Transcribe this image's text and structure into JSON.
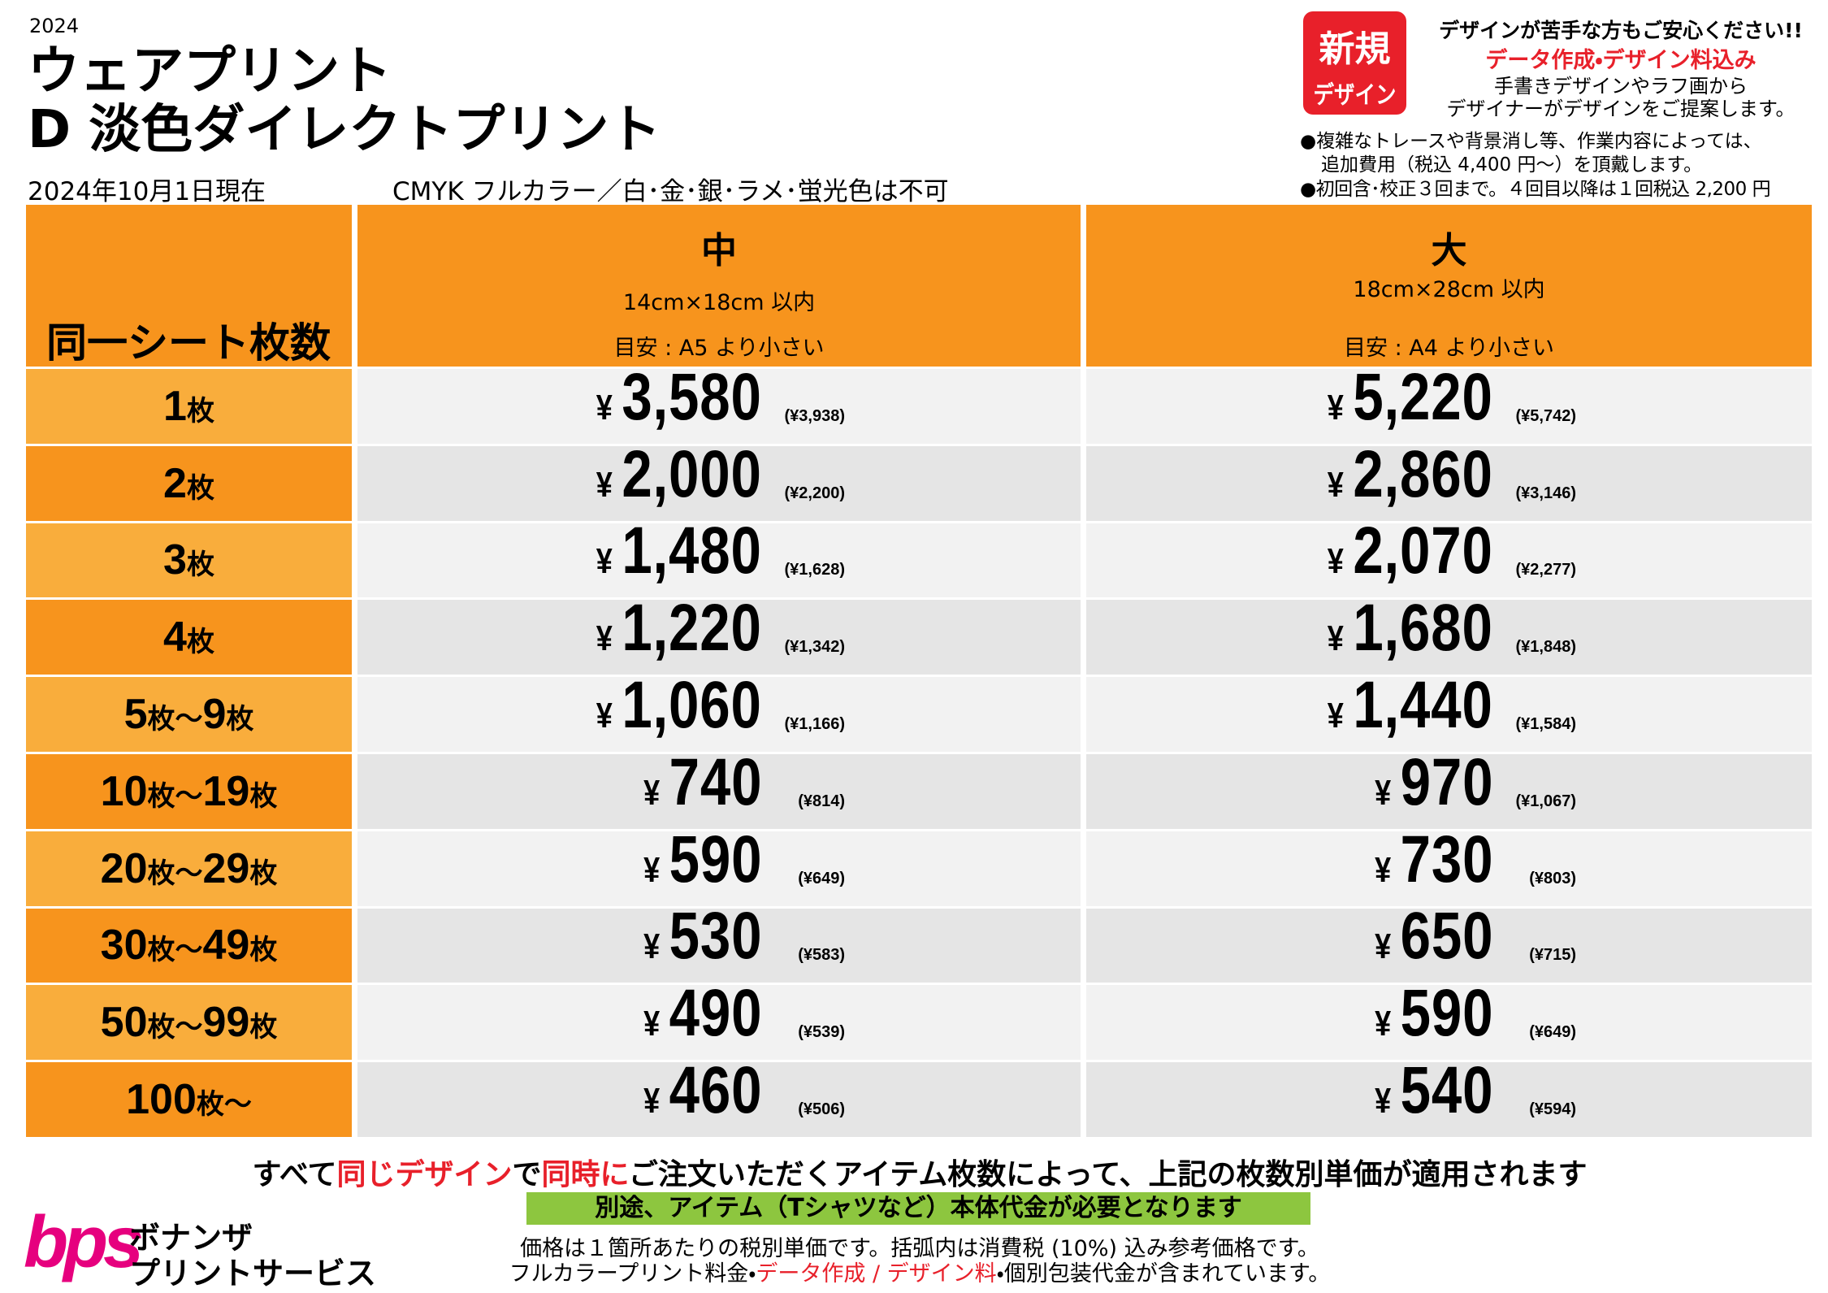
{
  "header": {
    "year": "2024",
    "title_line1": "ウェアプリント",
    "title_line2": "D 淡色ダイレクトプリント",
    "date": "2024年10月1日現在",
    "note": "CMYK フルカラー／白･金･銀･ラメ･蛍光色は不可"
  },
  "design_info": {
    "badge_line1": "新規",
    "badge_line2": "デザイン",
    "line1": "デザインが苦手な方もご安心ください!!",
    "line2": "データ作成・デザイン料込み",
    "line3": "手書きデザインやラフ画から",
    "line4": "デザイナーがデザインをご提案します。",
    "note1": "●複雑なトレースや背景消し等、作業内容によっては、",
    "note1_cont": "追加費用（税込 4,400 円～）を頂戴します。",
    "note2": "●初回含･校正３回まで。４回目以降は１回税込 2,200 円"
  },
  "table": {
    "label_header": "同一シート枚数",
    "currency": "¥",
    "columns": [
      {
        "name": "中",
        "size": "14cm×18cm 以内",
        "guide": "目安 : A5 より小さい"
      },
      {
        "name": "大",
        "size": "18cm×28cm 以内",
        "guide": "目安 : A4 より小さい"
      }
    ],
    "rows": [
      {
        "label": "1枚",
        "prices": [
          "3,580",
          "5,220"
        ],
        "tax_included": [
          "(¥3,938)",
          "(¥5,742)"
        ]
      },
      {
        "label": "2枚",
        "prices": [
          "2,000",
          "2,860"
        ],
        "tax_included": [
          "(¥2,200)",
          "(¥3,146)"
        ]
      },
      {
        "label": "3枚",
        "prices": [
          "1,480",
          "2,070"
        ],
        "tax_included": [
          "(¥1,628)",
          "(¥2,277)"
        ]
      },
      {
        "label": "4枚",
        "prices": [
          "1,220",
          "1,680"
        ],
        "tax_included": [
          "(¥1,342)",
          "(¥1,848)"
        ]
      },
      {
        "label": "5枚～9枚",
        "prices": [
          "1,060",
          "1,440"
        ],
        "tax_included": [
          "(¥1,166)",
          "(¥1,584)"
        ]
      },
      {
        "label": "10枚～19枚",
        "prices": [
          "740",
          "970"
        ],
        "tax_included": [
          "(¥814)",
          "(¥1,067)"
        ]
      },
      {
        "label": "20枚～29枚",
        "prices": [
          "590",
          "730"
        ],
        "tax_included": [
          "(¥649)",
          "(¥803)"
        ]
      },
      {
        "label": "30枚～49枚",
        "prices": [
          "530",
          "650"
        ],
        "tax_included": [
          "(¥583)",
          "(¥715)"
        ]
      },
      {
        "label": "50枚～99枚",
        "prices": [
          "490",
          "590"
        ],
        "tax_included": [
          "(¥539)",
          "(¥649)"
        ]
      },
      {
        "label": "100枚～",
        "prices": [
          "460",
          "540"
        ],
        "tax_included": [
          "(¥506)",
          "(¥594)"
        ]
      }
    ]
  },
  "footer": {
    "sentence": [
      {
        "text": "すべて"
      },
      {
        "text": "同じデザイン",
        "color": "#e8202a"
      },
      {
        "text": "で"
      },
      {
        "text": "同時に",
        "color": "#e8202a"
      },
      {
        "text": "ご注文いただくアイテム枚数によって、上記の枚数別単価が適用されます"
      }
    ],
    "notice": "別途、アイテム（Tシャツなど）本体代金が必要となります",
    "note1": "価格は１箇所あたりの税別単価です。括弧内は消費税 (10%) 込み参考価格です。",
    "note2": [
      {
        "text": "フルカラープリント料金・"
      },
      {
        "text": "データ作成 / デザイン料",
        "color": "#e8202a"
      },
      {
        "text": "・個別包装代金が含まれています。"
      }
    ],
    "logo": {
      "mark": "bps",
      "line1": "ボナンザ",
      "line2": "プリントサービス"
    }
  }
}
